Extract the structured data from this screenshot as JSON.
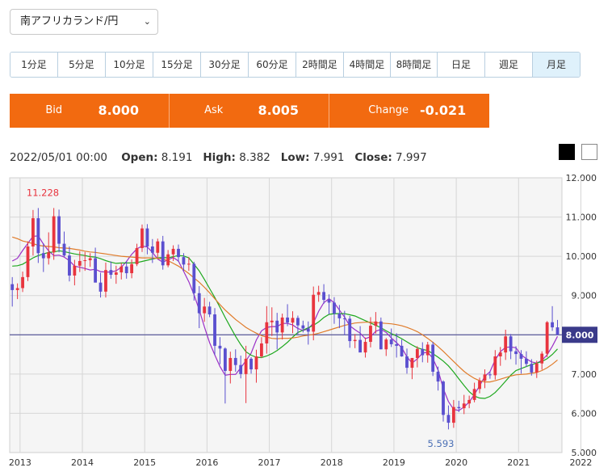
{
  "pair_select": {
    "value": "南アフリカランド/円"
  },
  "timeframes": [
    {
      "label": "1分足",
      "active": false
    },
    {
      "label": "5分足",
      "active": false
    },
    {
      "label": "10分足",
      "active": false
    },
    {
      "label": "15分足",
      "active": false
    },
    {
      "label": "30分足",
      "active": false
    },
    {
      "label": "60分足",
      "active": false
    },
    {
      "label": "2時間足",
      "active": false
    },
    {
      "label": "4時間足",
      "active": false
    },
    {
      "label": "8時間足",
      "active": false
    },
    {
      "label": "日足",
      "active": false
    },
    {
      "label": "週足",
      "active": false
    },
    {
      "label": "月足",
      "active": true
    }
  ],
  "quote": {
    "bid_label": "Bid",
    "bid_value": "8.000",
    "ask_label": "Ask",
    "ask_value": "8.005",
    "change_label": "Change",
    "change_value": "-0.021"
  },
  "ohlc": {
    "datetime": "2022/05/01 00:00",
    "open_label": "Open:",
    "open": "8.191",
    "high_label": "High:",
    "high": "8.382",
    "low_label": "Low:",
    "low": "7.991",
    "close_label": "Close:",
    "close": "7.997"
  },
  "colors": {
    "accent": "#f26a10",
    "up": "#e8343e",
    "down": "#5a4fcf",
    "ma_short": "#9b2fc7",
    "ma_mid": "#1ea81e",
    "ma_long": "#e07b2a",
    "price_line": "#3a3a8a"
  },
  "chart_data": {
    "type": "candlestick",
    "x_tick_labels": [
      "2013",
      "2014",
      "2015",
      "2016",
      "2017",
      "2018",
      "2019",
      "2020",
      "2021",
      "2022"
    ],
    "y_tick_labels": [
      "5.000",
      "6.000",
      "7.000",
      "8.000",
      "9.000",
      "10.000",
      "11.000",
      "12.000"
    ],
    "ylim": [
      5.0,
      12.0
    ],
    "current_price_label": "8.000",
    "current_price": 8.0,
    "annotations": [
      {
        "text": "11.228",
        "value": 11.228,
        "date": "2013-05"
      },
      {
        "text": "5.593",
        "value": 5.593,
        "date": "2020-04"
      }
    ],
    "series": [
      {
        "name": "",
        "color": "ma_short",
        "values": [
          9.88,
          9.95,
          10.15,
          10.33,
          10.51,
          10.52,
          10.31,
          10.14,
          10.02,
          10.03,
          9.98,
          9.89,
          9.75,
          9.72,
          9.69,
          9.65,
          9.67,
          9.61,
          9.6,
          9.6,
          9.63,
          9.72,
          9.87,
          10.05,
          10.19,
          10.26,
          10.24,
          10.1,
          9.93,
          9.85,
          9.91,
          9.97,
          9.88,
          9.62,
          9.35,
          9.02,
          8.64,
          8.2,
          7.8,
          7.49,
          7.19,
          6.97,
          6.99,
          6.99,
          7.16,
          7.34,
          7.53,
          7.87,
          8.1,
          8.19,
          8.21,
          8.21,
          8.29,
          8.29,
          8.25,
          8.16,
          8.11,
          8.15,
          8.3,
          8.6,
          8.82,
          8.92,
          8.82,
          8.63,
          8.45,
          8.23,
          8.13,
          8.04,
          7.9,
          7.95,
          8.09,
          8.14,
          8.06,
          7.92,
          7.8,
          7.67,
          7.44,
          7.28,
          7.39,
          7.53,
          7.56,
          7.4,
          7.1,
          6.63,
          6.3,
          6.1,
          6.07,
          6.16,
          6.29,
          6.48,
          6.7,
          6.94,
          7.06,
          7.36,
          7.57,
          7.68,
          7.69,
          7.67,
          7.49,
          7.39,
          7.31,
          7.28,
          7.35,
          7.49,
          7.71,
          7.96
        ]
      },
      {
        "name": "",
        "color": "ma_mid",
        "values": [
          9.75,
          9.76,
          9.8,
          9.88,
          9.96,
          10.02,
          10.06,
          10.1,
          10.11,
          10.14,
          10.12,
          10.09,
          10.06,
          10.04,
          10.02,
          9.99,
          9.98,
          9.94,
          9.89,
          9.85,
          9.82,
          9.83,
          9.83,
          9.83,
          9.84,
          9.87,
          9.9,
          9.93,
          9.96,
          9.97,
          9.96,
          9.99,
          10.02,
          10.01,
          9.96,
          9.8,
          9.63,
          9.41,
          9.18,
          8.95,
          8.7,
          8.44,
          8.2,
          7.96,
          7.75,
          7.57,
          7.48,
          7.43,
          7.42,
          7.46,
          7.52,
          7.6,
          7.7,
          7.81,
          7.94,
          8.06,
          8.12,
          8.18,
          8.24,
          8.33,
          8.44,
          8.52,
          8.54,
          8.54,
          8.54,
          8.51,
          8.48,
          8.42,
          8.36,
          8.3,
          8.24,
          8.18,
          8.1,
          8.03,
          7.97,
          7.9,
          7.82,
          7.74,
          7.67,
          7.63,
          7.6,
          7.52,
          7.43,
          7.33,
          7.21,
          7.05,
          6.88,
          6.71,
          6.55,
          6.44,
          6.39,
          6.38,
          6.43,
          6.53,
          6.67,
          6.82,
          6.97,
          7.09,
          7.14,
          7.19,
          7.24,
          7.28,
          7.32,
          7.39,
          7.5,
          7.64
        ]
      },
      {
        "name": "",
        "color": "ma_long",
        "values": [
          10.49,
          10.45,
          10.39,
          10.36,
          10.32,
          10.28,
          10.26,
          10.25,
          10.24,
          10.22,
          10.21,
          10.2,
          10.18,
          10.16,
          10.13,
          10.11,
          10.1,
          10.08,
          10.06,
          10.04,
          10.02,
          10.0,
          9.99,
          9.98,
          9.97,
          9.96,
          9.96,
          9.96,
          9.95,
          9.93,
          9.89,
          9.82,
          9.75,
          9.66,
          9.56,
          9.45,
          9.34,
          9.21,
          9.07,
          8.92,
          8.77,
          8.63,
          8.51,
          8.39,
          8.29,
          8.19,
          8.11,
          8.04,
          7.98,
          7.94,
          7.91,
          7.9,
          7.91,
          7.91,
          7.92,
          7.94,
          7.97,
          7.99,
          8.01,
          8.04,
          8.08,
          8.12,
          8.16,
          8.2,
          8.24,
          8.27,
          8.3,
          8.31,
          8.32,
          8.32,
          8.31,
          8.3,
          8.29,
          8.28,
          8.26,
          8.23,
          8.19,
          8.14,
          8.08,
          8.0,
          7.91,
          7.81,
          7.7,
          7.58,
          7.45,
          7.32,
          7.19,
          7.07,
          6.97,
          6.89,
          6.83,
          6.8,
          6.8,
          6.83,
          6.87,
          6.91,
          6.95,
          6.98,
          6.99,
          7.0,
          7.02,
          7.04,
          7.09,
          7.16,
          7.25,
          7.36
        ]
      }
    ],
    "candles": [
      {
        "o": 9.29,
        "h": 9.47,
        "l": 8.72,
        "c": 9.14
      },
      {
        "o": 9.14,
        "h": 9.31,
        "l": 8.91,
        "c": 9.19
      },
      {
        "o": 9.19,
        "h": 9.61,
        "l": 9.09,
        "c": 9.47
      },
      {
        "o": 9.47,
        "h": 10.38,
        "l": 9.37,
        "c": 10.25
      },
      {
        "o": 10.25,
        "h": 11.18,
        "l": 10.02,
        "c": 10.97
      },
      {
        "o": 10.97,
        "h": 11.23,
        "l": 9.83,
        "c": 10.08
      },
      {
        "o": 10.08,
        "h": 10.33,
        "l": 9.6,
        "c": 9.95
      },
      {
        "o": 9.95,
        "h": 10.61,
        "l": 9.79,
        "c": 10.1
      },
      {
        "o": 10.1,
        "h": 11.23,
        "l": 9.91,
        "c": 11.02
      },
      {
        "o": 11.02,
        "h": 11.19,
        "l": 10.1,
        "c": 10.32
      },
      {
        "o": 10.32,
        "h": 10.63,
        "l": 9.99,
        "c": 10.02
      },
      {
        "o": 10.02,
        "h": 10.25,
        "l": 9.36,
        "c": 9.51
      },
      {
        "o": 9.51,
        "h": 9.91,
        "l": 9.26,
        "c": 9.76
      },
      {
        "o": 9.76,
        "h": 10.13,
        "l": 9.6,
        "c": 9.88
      },
      {
        "o": 9.88,
        "h": 10.11,
        "l": 9.63,
        "c": 9.9
      },
      {
        "o": 9.9,
        "h": 10.08,
        "l": 9.73,
        "c": 9.95
      },
      {
        "o": 9.95,
        "h": 10.22,
        "l": 9.36,
        "c": 9.33
      },
      {
        "o": 9.33,
        "h": 9.58,
        "l": 8.95,
        "c": 9.1
      },
      {
        "o": 9.1,
        "h": 9.84,
        "l": 8.95,
        "c": 9.65
      },
      {
        "o": 9.65,
        "h": 9.87,
        "l": 9.43,
        "c": 9.53
      },
      {
        "o": 9.53,
        "h": 9.76,
        "l": 9.3,
        "c": 9.59
      },
      {
        "o": 9.59,
        "h": 9.83,
        "l": 9.41,
        "c": 9.74
      },
      {
        "o": 9.74,
        "h": 9.87,
        "l": 9.43,
        "c": 9.57
      },
      {
        "o": 9.57,
        "h": 9.92,
        "l": 9.44,
        "c": 9.8
      },
      {
        "o": 9.8,
        "h": 10.32,
        "l": 9.75,
        "c": 10.21
      },
      {
        "o": 10.21,
        "h": 10.81,
        "l": 10.11,
        "c": 10.71
      },
      {
        "o": 10.71,
        "h": 10.82,
        "l": 10.05,
        "c": 10.25
      },
      {
        "o": 10.25,
        "h": 10.44,
        "l": 9.83,
        "c": 10.09
      },
      {
        "o": 10.09,
        "h": 10.45,
        "l": 9.97,
        "c": 10.38
      },
      {
        "o": 10.38,
        "h": 10.52,
        "l": 9.66,
        "c": 9.77
      },
      {
        "o": 9.77,
        "h": 10.16,
        "l": 9.72,
        "c": 10.05
      },
      {
        "o": 10.05,
        "h": 10.28,
        "l": 9.88,
        "c": 10.19
      },
      {
        "o": 10.19,
        "h": 10.3,
        "l": 9.86,
        "c": 9.98
      },
      {
        "o": 9.98,
        "h": 10.08,
        "l": 9.63,
        "c": 9.79
      },
      {
        "o": 9.79,
        "h": 9.98,
        "l": 9.63,
        "c": 9.81
      },
      {
        "o": 9.81,
        "h": 9.86,
        "l": 8.87,
        "c": 9.06
      },
      {
        "o": 9.06,
        "h": 9.24,
        "l": 8.17,
        "c": 8.55
      },
      {
        "o": 8.55,
        "h": 8.94,
        "l": 8.33,
        "c": 8.72
      },
      {
        "o": 8.72,
        "h": 8.84,
        "l": 8.45,
        "c": 8.52
      },
      {
        "o": 8.52,
        "h": 8.68,
        "l": 7.48,
        "c": 7.72
      },
      {
        "o": 7.72,
        "h": 7.94,
        "l": 7.25,
        "c": 7.65
      },
      {
        "o": 7.65,
        "h": 7.68,
        "l": 6.25,
        "c": 7.08
      },
      {
        "o": 7.08,
        "h": 7.57,
        "l": 6.76,
        "c": 7.41
      },
      {
        "o": 7.41,
        "h": 7.63,
        "l": 7.06,
        "c": 7.23
      },
      {
        "o": 7.23,
        "h": 7.47,
        "l": 6.89,
        "c": 7.0
      },
      {
        "o": 7.0,
        "h": 7.72,
        "l": 6.26,
        "c": 7.39
      },
      {
        "o": 7.39,
        "h": 7.43,
        "l": 7.01,
        "c": 7.12
      },
      {
        "o": 7.12,
        "h": 7.62,
        "l": 6.78,
        "c": 7.45
      },
      {
        "o": 7.45,
        "h": 7.94,
        "l": 7.41,
        "c": 7.78
      },
      {
        "o": 7.78,
        "h": 8.73,
        "l": 7.52,
        "c": 8.32
      },
      {
        "o": 8.32,
        "h": 8.7,
        "l": 7.97,
        "c": 8.36
      },
      {
        "o": 8.36,
        "h": 8.56,
        "l": 7.63,
        "c": 8.06
      },
      {
        "o": 8.06,
        "h": 8.54,
        "l": 7.88,
        "c": 8.44
      },
      {
        "o": 8.44,
        "h": 8.78,
        "l": 8.22,
        "c": 8.31
      },
      {
        "o": 8.31,
        "h": 8.6,
        "l": 8.04,
        "c": 8.43
      },
      {
        "o": 8.43,
        "h": 8.49,
        "l": 8.01,
        "c": 8.24
      },
      {
        "o": 8.24,
        "h": 8.36,
        "l": 8.06,
        "c": 8.16
      },
      {
        "o": 8.16,
        "h": 8.34,
        "l": 7.75,
        "c": 8.08
      },
      {
        "o": 8.08,
        "h": 9.23,
        "l": 7.86,
        "c": 9.02
      },
      {
        "o": 9.02,
        "h": 9.25,
        "l": 8.84,
        "c": 9.09
      },
      {
        "o": 9.09,
        "h": 9.29,
        "l": 8.79,
        "c": 8.89
      },
      {
        "o": 8.89,
        "h": 9.03,
        "l": 8.52,
        "c": 8.82
      },
      {
        "o": 8.82,
        "h": 8.96,
        "l": 8.28,
        "c": 8.54
      },
      {
        "o": 8.54,
        "h": 8.76,
        "l": 8.17,
        "c": 8.42
      },
      {
        "o": 8.42,
        "h": 8.61,
        "l": 7.99,
        "c": 8.41
      },
      {
        "o": 8.41,
        "h": 8.48,
        "l": 7.67,
        "c": 7.84
      },
      {
        "o": 7.84,
        "h": 8.02,
        "l": 7.66,
        "c": 7.87
      },
      {
        "o": 7.87,
        "h": 8.22,
        "l": 7.58,
        "c": 7.55
      },
      {
        "o": 7.55,
        "h": 7.93,
        "l": 7.42,
        "c": 7.82
      },
      {
        "o": 7.82,
        "h": 8.45,
        "l": 7.68,
        "c": 8.23
      },
      {
        "o": 8.23,
        "h": 8.58,
        "l": 8.03,
        "c": 8.34
      },
      {
        "o": 8.34,
        "h": 8.44,
        "l": 7.63,
        "c": 7.63
      },
      {
        "o": 7.63,
        "h": 7.92,
        "l": 7.46,
        "c": 7.88
      },
      {
        "o": 7.88,
        "h": 8.16,
        "l": 7.69,
        "c": 7.76
      },
      {
        "o": 7.76,
        "h": 8.04,
        "l": 7.42,
        "c": 7.72
      },
      {
        "o": 7.72,
        "h": 7.88,
        "l": 7.44,
        "c": 7.45
      },
      {
        "o": 7.45,
        "h": 7.65,
        "l": 7.01,
        "c": 7.16
      },
      {
        "o": 7.16,
        "h": 7.41,
        "l": 6.87,
        "c": 7.41
      },
      {
        "o": 7.41,
        "h": 7.71,
        "l": 7.17,
        "c": 7.64
      },
      {
        "o": 7.64,
        "h": 7.81,
        "l": 7.3,
        "c": 7.48
      },
      {
        "o": 7.48,
        "h": 7.82,
        "l": 7.29,
        "c": 7.75
      },
      {
        "o": 7.75,
        "h": 7.82,
        "l": 6.95,
        "c": 7.06
      },
      {
        "o": 7.06,
        "h": 7.19,
        "l": 6.58,
        "c": 6.81
      },
      {
        "o": 6.81,
        "h": 6.84,
        "l": 5.79,
        "c": 5.96
      },
      {
        "o": 5.96,
        "h": 6.2,
        "l": 5.59,
        "c": 5.76
      },
      {
        "o": 5.76,
        "h": 6.34,
        "l": 5.63,
        "c": 6.16
      },
      {
        "o": 6.16,
        "h": 6.32,
        "l": 6.03,
        "c": 6.13
      },
      {
        "o": 6.13,
        "h": 6.47,
        "l": 5.98,
        "c": 6.25
      },
      {
        "o": 6.25,
        "h": 6.45,
        "l": 6.13,
        "c": 6.34
      },
      {
        "o": 6.34,
        "h": 6.78,
        "l": 6.28,
        "c": 6.62
      },
      {
        "o": 6.62,
        "h": 6.91,
        "l": 6.51,
        "c": 6.83
      },
      {
        "o": 6.83,
        "h": 7.12,
        "l": 6.64,
        "c": 6.99
      },
      {
        "o": 6.99,
        "h": 7.07,
        "l": 6.88,
        "c": 6.97
      },
      {
        "o": 6.97,
        "h": 7.61,
        "l": 6.86,
        "c": 7.45
      },
      {
        "o": 7.45,
        "h": 7.69,
        "l": 7.21,
        "c": 7.55
      },
      {
        "o": 7.55,
        "h": 8.13,
        "l": 7.36,
        "c": 7.96
      },
      {
        "o": 7.96,
        "h": 8.02,
        "l": 7.38,
        "c": 7.58
      },
      {
        "o": 7.58,
        "h": 7.71,
        "l": 7.24,
        "c": 7.51
      },
      {
        "o": 7.51,
        "h": 7.61,
        "l": 7.01,
        "c": 7.39
      },
      {
        "o": 7.39,
        "h": 7.58,
        "l": 7.18,
        "c": 7.26
      },
      {
        "o": 7.26,
        "h": 7.38,
        "l": 6.96,
        "c": 7.04
      },
      {
        "o": 7.04,
        "h": 7.34,
        "l": 6.9,
        "c": 7.27
      },
      {
        "o": 7.27,
        "h": 7.58,
        "l": 7.11,
        "c": 7.52
      },
      {
        "o": 7.52,
        "h": 8.35,
        "l": 7.43,
        "c": 8.32
      },
      {
        "o": 8.32,
        "h": 8.73,
        "l": 8.1,
        "c": 8.19
      },
      {
        "o": 8.19,
        "h": 8.38,
        "l": 7.99,
        "c": 8.0
      }
    ]
  }
}
